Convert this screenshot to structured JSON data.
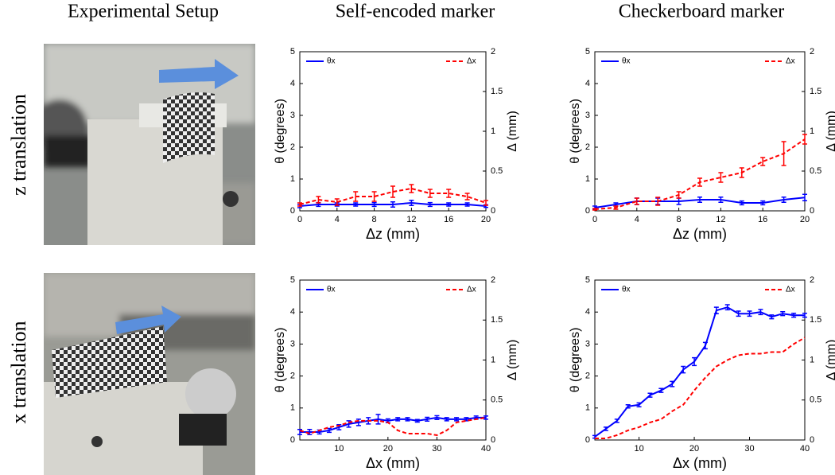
{
  "headers": [
    "Experimental Setup",
    "Self-encoded marker",
    "Checkerboard marker"
  ],
  "row_labels": [
    "z translation",
    "x translation"
  ],
  "chart_data": [
    {
      "type": "line",
      "x_label": "Δz (mm)",
      "y_label": "θ (degrees)",
      "y2_label": "Δ (mm)",
      "x": [
        0,
        2,
        4,
        6,
        8,
        10,
        12,
        14,
        16,
        18,
        20
      ],
      "xlim": [
        0,
        20
      ],
      "xticks": [
        0,
        4,
        8,
        12,
        16,
        20
      ],
      "ylim": [
        0,
        5
      ],
      "yticks": [
        0,
        1,
        2,
        3,
        4,
        5
      ],
      "y2lim": [
        0,
        2
      ],
      "y2ticks": [
        0,
        0.5,
        1,
        1.5,
        2
      ],
      "series": [
        {
          "name": "θx",
          "color": "#0000ff",
          "style": "solid",
          "values": [
            0.15,
            0.2,
            0.2,
            0.2,
            0.2,
            0.2,
            0.25,
            0.2,
            0.2,
            0.2,
            0.15
          ],
          "errors": [
            0.05,
            0.06,
            0.05,
            0.05,
            0.06,
            0.08,
            0.08,
            0.06,
            0.05,
            0.05,
            0.04
          ]
        },
        {
          "name": "Δx",
          "color": "#ff0000",
          "style": "dashed",
          "axis": "y2",
          "values": [
            0.08,
            0.14,
            0.11,
            0.18,
            0.18,
            0.24,
            0.28,
            0.22,
            0.22,
            0.18,
            0.1
          ],
          "errors": [
            0.02,
            0.04,
            0.04,
            0.06,
            0.06,
            0.07,
            0.05,
            0.05,
            0.05,
            0.04,
            0.03
          ]
        }
      ]
    },
    {
      "type": "line",
      "x_label": "Δz (mm)",
      "y_label": "θ (degrees)",
      "y2_label": "Δ (mm)",
      "x": [
        0,
        2,
        4,
        6,
        8,
        10,
        12,
        14,
        16,
        18,
        20
      ],
      "xlim": [
        0,
        20
      ],
      "xticks": [
        0,
        4,
        8,
        12,
        16,
        20
      ],
      "ylim": [
        0,
        5
      ],
      "yticks": [
        0,
        1,
        2,
        3,
        4,
        5
      ],
      "y2lim": [
        0,
        2
      ],
      "y2ticks": [
        0,
        0.5,
        1,
        1.5,
        2
      ],
      "series": [
        {
          "name": "θx",
          "color": "#0000ff",
          "style": "solid",
          "values": [
            0.1,
            0.2,
            0.3,
            0.3,
            0.3,
            0.35,
            0.35,
            0.25,
            0.25,
            0.35,
            0.42
          ],
          "errors": [
            0.05,
            0.05,
            0.1,
            0.1,
            0.1,
            0.08,
            0.08,
            0.06,
            0.06,
            0.08,
            0.1
          ]
        },
        {
          "name": "Δx",
          "color": "#ff0000",
          "style": "dashed",
          "axis": "y2",
          "values": [
            0.02,
            0.04,
            0.12,
            0.12,
            0.2,
            0.36,
            0.42,
            0.48,
            0.62,
            0.72,
            0.9
          ],
          "errors": [
            0.01,
            0.02,
            0.04,
            0.05,
            0.04,
            0.05,
            0.06,
            0.06,
            0.05,
            0.15,
            0.06
          ]
        }
      ]
    },
    {
      "type": "line",
      "x_label": "Δx (mm)",
      "y_label": "θ (degrees)",
      "y2_label": "Δ (mm)",
      "x": [
        2,
        4,
        6,
        8,
        10,
        12,
        14,
        16,
        18,
        20,
        22,
        24,
        26,
        28,
        30,
        32,
        34,
        36,
        38,
        40
      ],
      "xlim": [
        2,
        40
      ],
      "xticks": [
        10,
        20,
        30,
        40
      ],
      "ylim": [
        0,
        5
      ],
      "yticks": [
        0,
        1,
        2,
        3,
        4,
        5
      ],
      "y2lim": [
        0,
        2
      ],
      "y2ticks": [
        0,
        0.5,
        1,
        1.5,
        2
      ],
      "series": [
        {
          "name": "θx",
          "color": "#0000ff",
          "style": "solid",
          "values": [
            0.25,
            0.25,
            0.25,
            0.3,
            0.4,
            0.5,
            0.55,
            0.6,
            0.65,
            0.6,
            0.65,
            0.65,
            0.6,
            0.65,
            0.7,
            0.65,
            0.65,
            0.65,
            0.7,
            0.7
          ],
          "errors": [
            0.08,
            0.08,
            0.06,
            0.06,
            0.08,
            0.1,
            0.1,
            0.1,
            0.15,
            0.06,
            0.05,
            0.05,
            0.04,
            0.06,
            0.06,
            0.05,
            0.05,
            0.05,
            0.05,
            0.05
          ]
        },
        {
          "name": "Δx",
          "color": "#ff0000",
          "style": "dashed",
          "axis": "y2",
          "values": [
            0.12,
            0.08,
            0.12,
            0.16,
            0.18,
            0.22,
            0.24,
            0.24,
            0.24,
            0.22,
            0.12,
            0.08,
            0.08,
            0.08,
            0.06,
            0.12,
            0.22,
            0.24,
            0.26,
            0.28
          ]
        }
      ]
    },
    {
      "type": "line",
      "x_label": "Δx (mm)",
      "y_label": "θ (degrees)",
      "y2_label": "Δ (mm)",
      "x": [
        2,
        4,
        6,
        8,
        10,
        12,
        14,
        16,
        18,
        20,
        22,
        24,
        26,
        28,
        30,
        32,
        34,
        36,
        38,
        40
      ],
      "xlim": [
        2,
        40
      ],
      "xticks": [
        10,
        20,
        30,
        40
      ],
      "ylim": [
        0,
        5
      ],
      "yticks": [
        0,
        1,
        2,
        3,
        4,
        5
      ],
      "y2lim": [
        0,
        2
      ],
      "y2ticks": [
        0,
        0.5,
        1,
        1.5,
        2
      ],
      "series": [
        {
          "name": "θx",
          "color": "#0000ff",
          "style": "solid",
          "values": [
            0.1,
            0.35,
            0.6,
            1.05,
            1.1,
            1.4,
            1.55,
            1.75,
            2.2,
            2.45,
            2.95,
            4.05,
            4.15,
            3.95,
            3.95,
            4.0,
            3.85,
            3.95,
            3.9,
            3.9
          ],
          "errors": [
            0.04,
            0.05,
            0.05,
            0.05,
            0.06,
            0.06,
            0.06,
            0.08,
            0.1,
            0.12,
            0.1,
            0.1,
            0.08,
            0.08,
            0.08,
            0.08,
            0.06,
            0.06,
            0.06,
            0.06
          ]
        },
        {
          "name": "Δx",
          "color": "#ff0000",
          "style": "dashed",
          "axis": "y2",
          "values": [
            0.02,
            0.02,
            0.06,
            0.12,
            0.16,
            0.22,
            0.26,
            0.36,
            0.44,
            0.62,
            0.78,
            0.92,
            1.0,
            1.06,
            1.08,
            1.08,
            1.1,
            1.1,
            1.2,
            1.28
          ]
        }
      ]
    }
  ]
}
